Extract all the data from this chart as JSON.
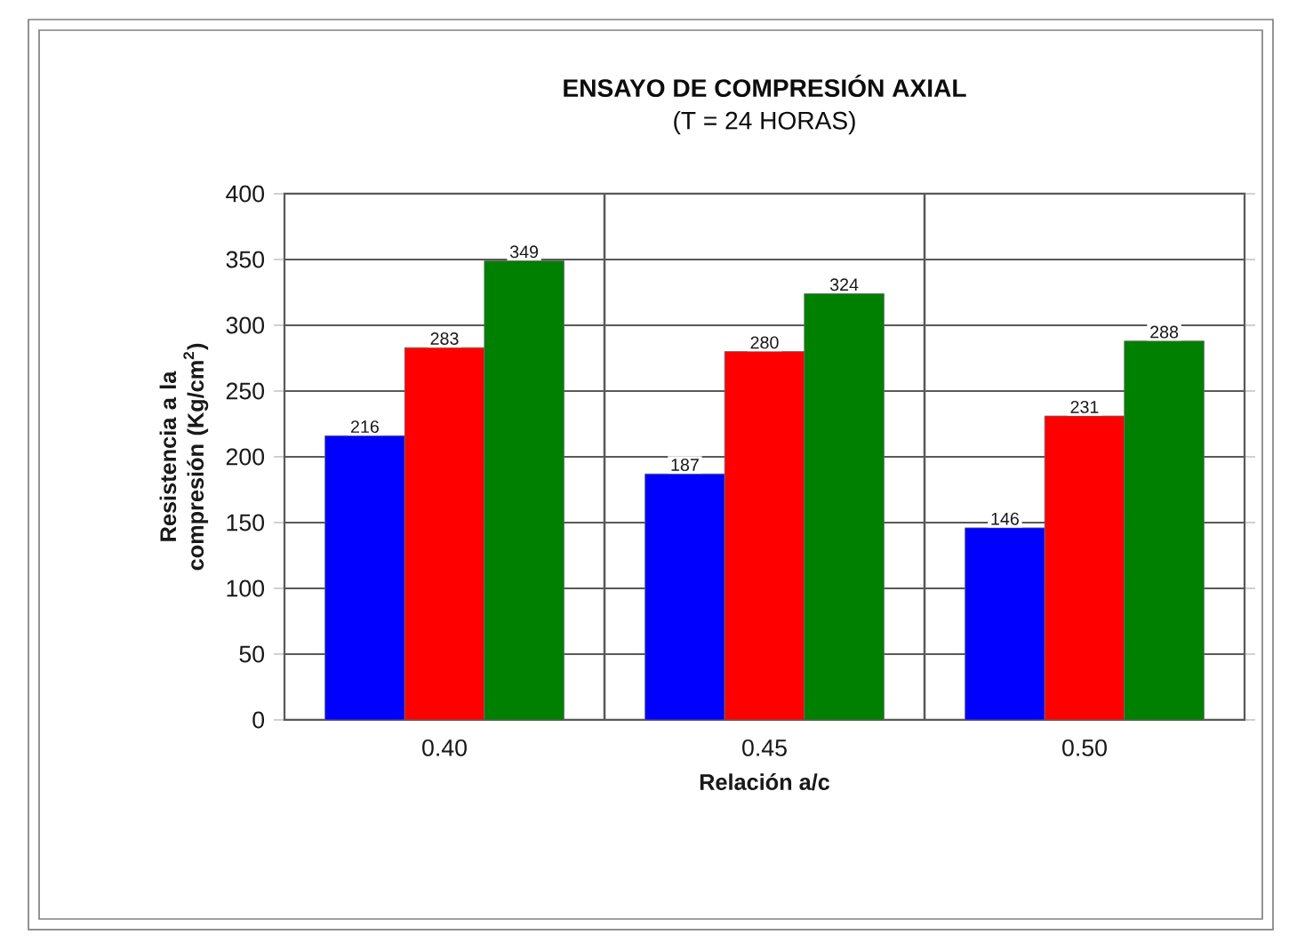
{
  "chart_data": {
    "type": "bar",
    "title": "ENSAYO DE COMPRESIÓN AXIAL",
    "subtitle": "(T = 24 HORAS)",
    "xlabel": "Relación a/c",
    "ylabel": "Resistencia a la compresión (Kg/cm$^{2}$)",
    "categories": [
      "0.40",
      "0.45",
      "0.50"
    ],
    "series": [
      {
        "color": "#0000ff",
        "values": [
          216,
          187,
          146
        ]
      },
      {
        "color": "#ff0000",
        "values": [
          283,
          280,
          231
        ]
      },
      {
        "color": "#008000",
        "values": [
          349,
          324,
          288
        ]
      }
    ],
    "ylim": [
      0,
      400
    ],
    "yticks": [
      0,
      50,
      100,
      150,
      200,
      250,
      300,
      350,
      400
    ],
    "grid": true,
    "data_labels": true
  }
}
